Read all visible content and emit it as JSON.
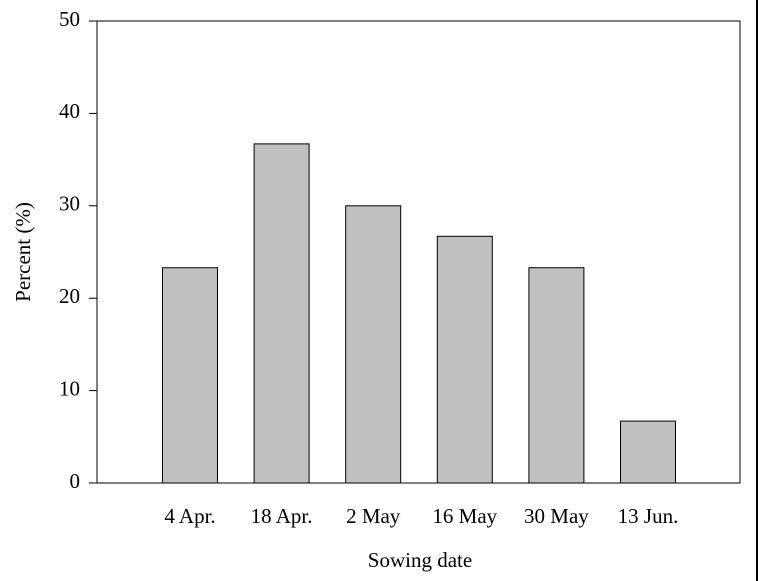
{
  "chart_data": {
    "type": "bar",
    "x_label": "Sowing date",
    "y_label": "Percent (%)",
    "categories": [
      "4 Apr.",
      "18 Apr.",
      "2 May",
      "16 May",
      "30 May",
      "13 Jun."
    ],
    "values": [
      23.3,
      36.7,
      30,
      26.7,
      23.3,
      6.7
    ],
    "color": "#c0c0c0",
    "ylim": [
      0,
      50
    ],
    "yticks": [
      0,
      10,
      20,
      30,
      40,
      50
    ],
    "grid": false
  }
}
